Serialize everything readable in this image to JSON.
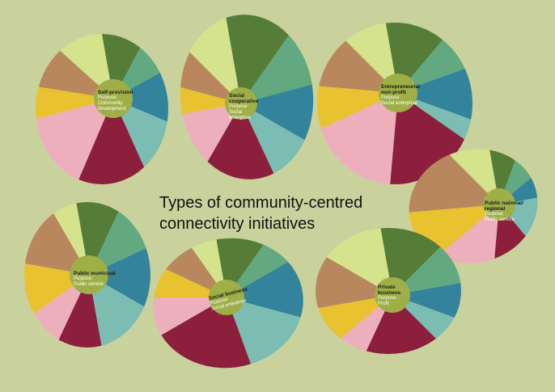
{
  "title": {
    "line1": "Types of community-centred",
    "line2": "connectivity initiatives"
  },
  "colors": {
    "background": "#c9d29d",
    "center_circle": "#9faf47",
    "palette": [
      "#557d38",
      "#62a880",
      "#33839c",
      "#7bbdb2",
      "#8c1f3c",
      "#eeafbc",
      "#e9c22f",
      "#b9875e",
      "#d6e38d"
    ]
  },
  "initiatives": [
    {
      "name": "Self-provision",
      "purpose_label": "Purpose:",
      "purpose": "Community development"
    },
    {
      "name": "Social cooperative",
      "purpose_label": "Purpose:",
      "purpose": "Social enterprise"
    },
    {
      "name": "Entrepreneurial non-profit",
      "purpose_label": "Purpose:",
      "purpose": "Social enterprise"
    },
    {
      "name": "Public national/ regional",
      "purpose_label": "Purpose:",
      "purpose": "Public service"
    },
    {
      "name": "Public municipal",
      "purpose_label": "Purpose:",
      "purpose": "Public service"
    },
    {
      "name": "Social business",
      "purpose_label": "Purpose:",
      "purpose": "Social enterprise"
    },
    {
      "name": "Private business",
      "purpose_label": "Purpose:",
      "purpose": "Profit"
    }
  ]
}
